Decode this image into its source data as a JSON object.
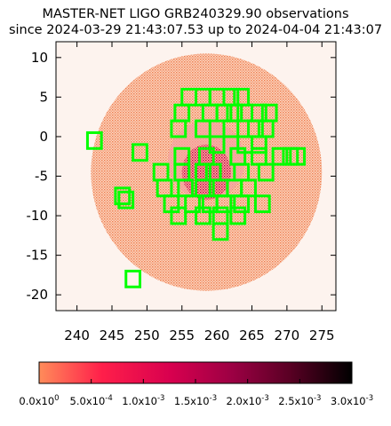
{
  "chart_data": {
    "type": "heatmap",
    "title_lines": [
      "MASTER-NET LIGO GRB240329.90 observations",
      "since 2024-03-29 21:43:07.53 up to 2024-04-04 21:43:07"
    ],
    "xlim": [
      237,
      277
    ],
    "ylim": [
      -22,
      12
    ],
    "x_ticks": [
      240,
      245,
      250,
      255,
      260,
      265,
      270,
      275
    ],
    "y_ticks": [
      10,
      5,
      0,
      -5,
      -10,
      -15,
      -20
    ],
    "colorbar": {
      "range": [
        0,
        0.003
      ],
      "ticks": [
        "0.0x10",
        "5.0x10",
        "1.0x10",
        "1.5x10",
        "2.0x10",
        "2.5x10",
        "3.0x10"
      ],
      "exponents": [
        "0",
        "-4",
        "-3",
        "-3",
        "-3",
        "-3",
        "-3"
      ],
      "colors": [
        "#ff8c5a",
        "#ff1f4a",
        "#d8004f",
        "#9b0043",
        "#5a0024",
        "#000000"
      ]
    },
    "probability_region": {
      "center": [
        258.5,
        -4.5
      ],
      "semi_axes_deg": [
        16.5,
        15.0
      ],
      "outer_color": "#f5a07a",
      "core_color": "#e0104e"
    },
    "fields": [
      [
        256,
        5
      ],
      [
        258,
        5
      ],
      [
        260,
        5
      ],
      [
        262,
        5
      ],
      [
        263.5,
        5
      ],
      [
        255,
        3
      ],
      [
        259,
        3
      ],
      [
        261,
        3
      ],
      [
        262.5,
        3
      ],
      [
        264,
        3
      ],
      [
        266,
        3
      ],
      [
        267.5,
        3
      ],
      [
        254.5,
        1
      ],
      [
        258,
        1
      ],
      [
        262,
        1
      ],
      [
        265.5,
        1
      ],
      [
        267,
        1
      ],
      [
        260,
        -1
      ],
      [
        264,
        -1
      ],
      [
        266,
        -1
      ],
      [
        249,
        -2
      ],
      [
        255,
        -2.5
      ],
      [
        258.5,
        -2.5
      ],
      [
        263,
        -2.5
      ],
      [
        266,
        -2.5
      ],
      [
        269,
        -2.5
      ],
      [
        270.5,
        -2.5
      ],
      [
        271.5,
        -2.5
      ],
      [
        252,
        -4.5
      ],
      [
        255,
        -4.5
      ],
      [
        258,
        -4.5
      ],
      [
        259.5,
        -4.5
      ],
      [
        263.5,
        -4.5
      ],
      [
        267,
        -4.5
      ],
      [
        252.5,
        -6.5
      ],
      [
        255.5,
        -6.5
      ],
      [
        258,
        -6.5
      ],
      [
        260.5,
        -6.5
      ],
      [
        262.5,
        -6.5
      ],
      [
        264.5,
        -6.5
      ],
      [
        253.5,
        -8.5
      ],
      [
        256.5,
        -8.5
      ],
      [
        259,
        -8.5
      ],
      [
        261,
        -8.5
      ],
      [
        263.5,
        -8.5
      ],
      [
        266.5,
        -8.5
      ],
      [
        246.5,
        -7.5
      ],
      [
        247,
        -8
      ],
      [
        254.5,
        -10
      ],
      [
        258,
        -10
      ],
      [
        260.5,
        -10
      ],
      [
        263,
        -10
      ],
      [
        260.5,
        -12
      ],
      [
        242.5,
        -0.5
      ],
      [
        248,
        -18
      ]
    ],
    "field_size_deg": 2,
    "field_color": "#00ff00"
  }
}
